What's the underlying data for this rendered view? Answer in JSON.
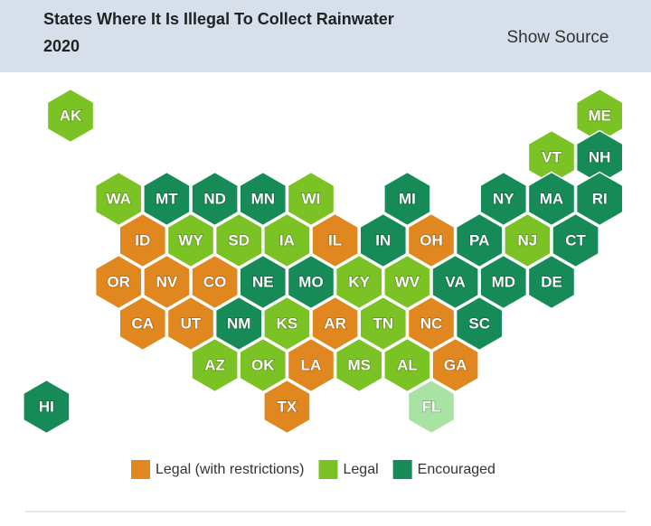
{
  "header": {
    "title_lines": [
      "States Where It Is Illegal To Collect Rainwater",
      "2020"
    ],
    "link": "Show Source"
  },
  "legend": [
    {
      "label": "Legal (with restrictions)",
      "color": "#e0881f"
    },
    {
      "label": "Legal",
      "color": "#7bc225"
    },
    {
      "label": "Encouraged",
      "color": "#168a57"
    }
  ],
  "tiles": [
    {
      "label": "AK",
      "category": 1
    },
    {
      "label": "ME",
      "category": 1
    },
    {
      "label": "VT",
      "category": 1
    },
    {
      "label": "NH",
      "category": 2
    },
    {
      "label": "WA",
      "category": 1
    },
    {
      "label": "MT",
      "category": 2
    },
    {
      "label": "ND",
      "category": 2
    },
    {
      "label": "MN",
      "category": 2
    },
    {
      "label": "WI",
      "category": 1
    },
    {
      "label": "MI",
      "category": 2
    },
    {
      "label": "NY",
      "category": 2
    },
    {
      "label": "MA",
      "category": 2
    },
    {
      "label": "RI",
      "category": 2
    },
    {
      "label": "ID",
      "category": 0
    },
    {
      "label": "WY",
      "category": 1
    },
    {
      "label": "SD",
      "category": 1
    },
    {
      "label": "IA",
      "category": 1
    },
    {
      "label": "IL",
      "category": 0
    },
    {
      "label": "IN",
      "category": 2
    },
    {
      "label": "OH",
      "category": 0
    },
    {
      "label": "PA",
      "category": 2
    },
    {
      "label": "NJ",
      "category": 1
    },
    {
      "label": "CT",
      "category": 2
    },
    {
      "label": "OR",
      "category": 0
    },
    {
      "label": "NV",
      "category": 0
    },
    {
      "label": "CO",
      "category": 0
    },
    {
      "label": "NE",
      "category": 2
    },
    {
      "label": "MO",
      "category": 2
    },
    {
      "label": "KY",
      "category": 1
    },
    {
      "label": "WV",
      "category": 1
    },
    {
      "label": "VA",
      "category": 2
    },
    {
      "label": "MD",
      "category": 2
    },
    {
      "label": "DE",
      "category": 2
    },
    {
      "label": "CA",
      "category": 0
    },
    {
      "label": "UT",
      "category": 0
    },
    {
      "label": "NM",
      "category": 2
    },
    {
      "label": "KS",
      "category": 1
    },
    {
      "label": "AR",
      "category": 0
    },
    {
      "label": "TN",
      "category": 1
    },
    {
      "label": "NC",
      "category": 0
    },
    {
      "label": "SC",
      "category": 2
    },
    {
      "label": "AZ",
      "category": 1
    },
    {
      "label": "OK",
      "category": 1
    },
    {
      "label": "LA",
      "category": 0
    },
    {
      "label": "MS",
      "category": 1
    },
    {
      "label": "AL",
      "category": 1
    },
    {
      "label": "GA",
      "category": 0
    },
    {
      "label": "TX",
      "category": 0
    },
    {
      "label": "FL",
      "category": 1,
      "color": "#a9e3a4"
    },
    {
      "label": "HI",
      "category": 2
    }
  ]
}
